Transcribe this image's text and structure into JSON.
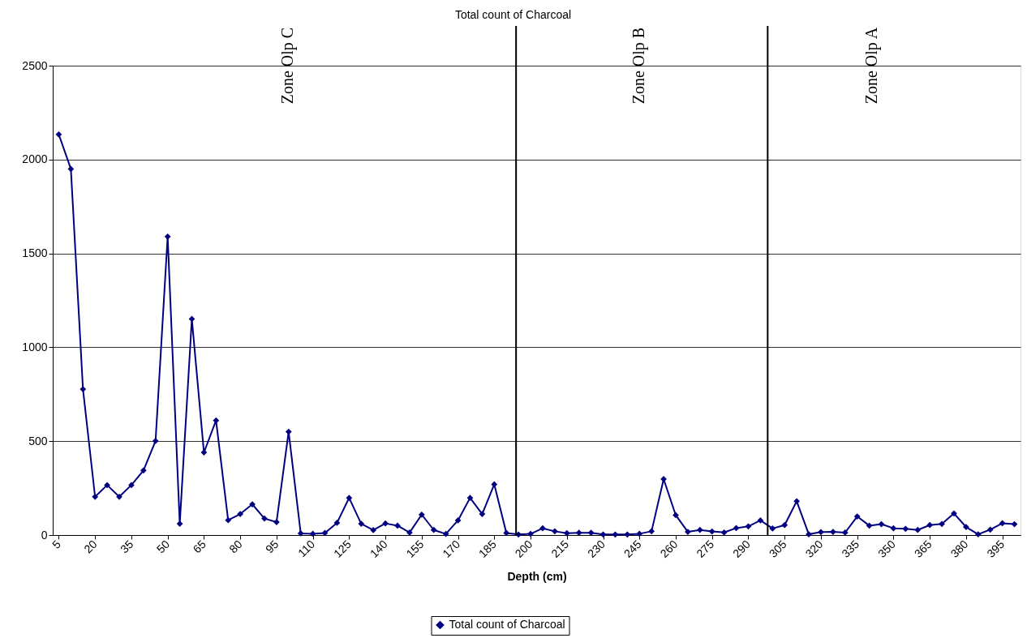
{
  "chart_data": {
    "type": "line",
    "title": "Total count of Charcoal",
    "xlabel": "Depth (cm)",
    "x": [
      5,
      10,
      15,
      20,
      25,
      30,
      35,
      40,
      45,
      50,
      55,
      60,
      65,
      70,
      75,
      80,
      85,
      90,
      95,
      100,
      105,
      110,
      115,
      120,
      125,
      130,
      135,
      140,
      145,
      150,
      155,
      160,
      165,
      170,
      175,
      180,
      185,
      190,
      195,
      200,
      205,
      210,
      215,
      220,
      225,
      230,
      235,
      240,
      245,
      250,
      255,
      260,
      265,
      270,
      275,
      280,
      285,
      290,
      295,
      300,
      305,
      310,
      315,
      320,
      325,
      330,
      335,
      340,
      345,
      350,
      355,
      360,
      365,
      370,
      375,
      380,
      385,
      390,
      395,
      400
    ],
    "series": [
      {
        "name": "Total count of Charcoal",
        "color": "#000080",
        "values": [
          2134,
          1950,
          777,
          204,
          266,
          204,
          266,
          344,
          501,
          1590,
          60,
          1151,
          440,
          610,
          79,
          112,
          164,
          88,
          69,
          550,
          9,
          7,
          11,
          65,
          198,
          60,
          26,
          62,
          50,
          13,
          109,
          27,
          6,
          78,
          198,
          112,
          270,
          11,
          3,
          6,
          36,
          20,
          10,
          12,
          12,
          3,
          3,
          3,
          7,
          20,
          298,
          106,
          17,
          27,
          19,
          14,
          37,
          46,
          78,
          35,
          53,
          180,
          4,
          16,
          17,
          13,
          99,
          50,
          58,
          36,
          33,
          27,
          53,
          59,
          115,
          43,
          4,
          29,
          63,
          58
        ]
      }
    ],
    "xlim": [
      2.5,
      402.5
    ],
    "xticks": [
      5,
      20,
      35,
      50,
      65,
      80,
      95,
      110,
      125,
      140,
      155,
      170,
      185,
      200,
      215,
      230,
      245,
      260,
      275,
      290,
      305,
      320,
      335,
      350,
      365,
      380,
      395
    ],
    "ylim": [
      0,
      2500
    ],
    "yticks": [
      0,
      500,
      1000,
      1500,
      2000,
      2500
    ],
    "ref_lines": [
      {
        "axis": "x",
        "value": 194,
        "color": "#000000"
      },
      {
        "axis": "x",
        "value": 298,
        "color": "#000000"
      }
    ],
    "annotations": [
      "Zone Olp C",
      "Zone Olp B",
      "Zone Olp A"
    ],
    "grid": "y",
    "legend": "bottom",
    "marker": "diamond",
    "line_style": "solid"
  }
}
